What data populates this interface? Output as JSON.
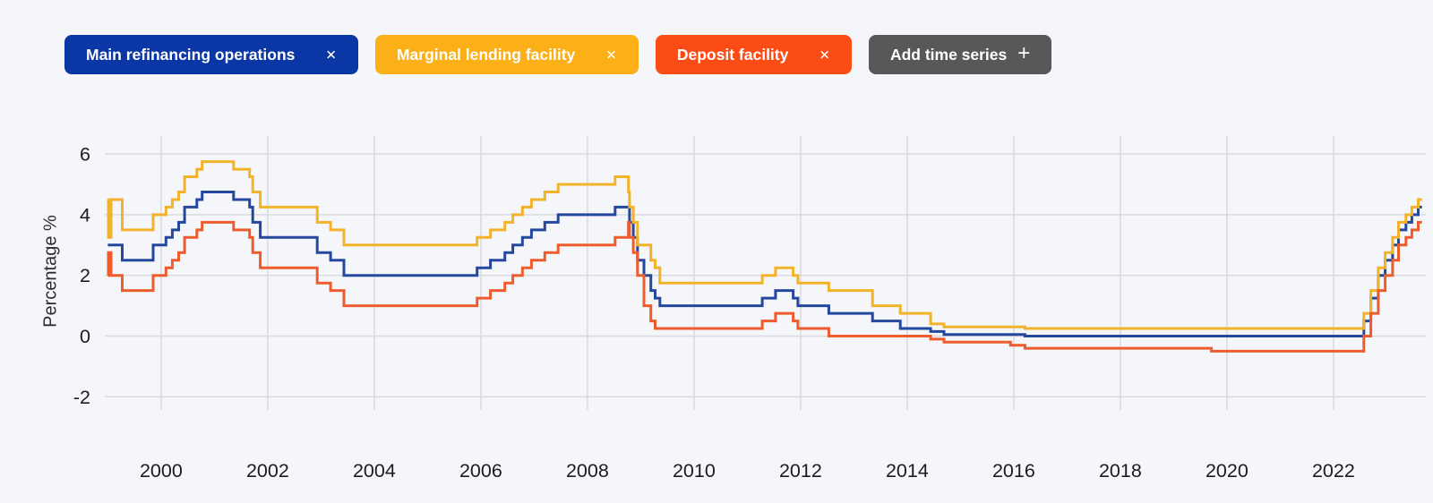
{
  "chips": [
    {
      "label": "Main refinancing operations",
      "close_icon": "✕",
      "color": "#0a36a6"
    },
    {
      "label": "Marginal lending facility",
      "close_icon": "✕",
      "color": "#fbb018"
    },
    {
      "label": "Deposit facility",
      "close_icon": "✕",
      "color": "#fb4c15"
    },
    {
      "label": "Add time series",
      "icon": "+",
      "color": "#58585a"
    }
  ],
  "colors": {
    "background": "#f5f6f9",
    "gridline": "#d7d9de",
    "axis_text": "#1c1c1c"
  },
  "chart_data": {
    "type": "line",
    "subtype": "step-after",
    "title": "",
    "xlabel": "",
    "ylabel": "Percentage %",
    "grid": true,
    "legend_position": "top-chips",
    "x_ticks": [
      2000,
      2002,
      2004,
      2006,
      2008,
      2010,
      2012,
      2014,
      2016,
      2018,
      2020,
      2022
    ],
    "y_ticks": [
      -2,
      0,
      2,
      4,
      6
    ],
    "xlim": [
      1999.0,
      2023.66
    ],
    "ylim": [
      -2.5,
      6.6
    ],
    "x_unit": "year",
    "y_unit": "percent",
    "series": [
      {
        "name": "Main refinancing operations",
        "color": "#24489e",
        "points": [
          [
            1999.0,
            3.0
          ],
          [
            1999.27,
            2.5
          ],
          [
            1999.85,
            3.0
          ],
          [
            2000.09,
            3.25
          ],
          [
            2000.21,
            3.5
          ],
          [
            2000.33,
            3.75
          ],
          [
            2000.44,
            4.25
          ],
          [
            2000.67,
            4.5
          ],
          [
            2000.77,
            4.75
          ],
          [
            2001.36,
            4.5
          ],
          [
            2001.66,
            4.25
          ],
          [
            2001.72,
            3.75
          ],
          [
            2001.86,
            3.25
          ],
          [
            2002.93,
            2.75
          ],
          [
            2003.18,
            2.5
          ],
          [
            2003.43,
            2.0
          ],
          [
            2005.93,
            2.25
          ],
          [
            2006.18,
            2.5
          ],
          [
            2006.45,
            2.75
          ],
          [
            2006.6,
            3.0
          ],
          [
            2006.78,
            3.25
          ],
          [
            2006.95,
            3.5
          ],
          [
            2007.2,
            3.75
          ],
          [
            2007.45,
            4.0
          ],
          [
            2008.52,
            4.25
          ],
          [
            2008.79,
            3.75
          ],
          [
            2008.86,
            3.25
          ],
          [
            2008.94,
            2.5
          ],
          [
            2009.06,
            2.0
          ],
          [
            2009.19,
            1.5
          ],
          [
            2009.27,
            1.25
          ],
          [
            2009.36,
            1.0
          ],
          [
            2011.28,
            1.25
          ],
          [
            2011.53,
            1.5
          ],
          [
            2011.86,
            1.25
          ],
          [
            2011.95,
            1.0
          ],
          [
            2012.53,
            0.75
          ],
          [
            2013.35,
            0.5
          ],
          [
            2013.87,
            0.25
          ],
          [
            2014.44,
            0.15
          ],
          [
            2014.69,
            0.05
          ],
          [
            2016.21,
            0.0
          ],
          [
            2022.57,
            0.5
          ],
          [
            2022.7,
            1.25
          ],
          [
            2022.84,
            2.0
          ],
          [
            2022.97,
            2.5
          ],
          [
            2023.11,
            3.0
          ],
          [
            2023.22,
            3.5
          ],
          [
            2023.36,
            3.75
          ],
          [
            2023.47,
            4.0
          ],
          [
            2023.59,
            4.25
          ]
        ]
      },
      {
        "name": "Marginal lending facility",
        "color": "#f2b32b",
        "points": [
          [
            1999.0,
            4.5
          ],
          [
            1999.01,
            3.25
          ],
          [
            1999.06,
            4.5
          ],
          [
            1999.27,
            3.5
          ],
          [
            1999.85,
            4.0
          ],
          [
            2000.09,
            4.25
          ],
          [
            2000.21,
            4.5
          ],
          [
            2000.33,
            4.75
          ],
          [
            2000.44,
            5.25
          ],
          [
            2000.67,
            5.5
          ],
          [
            2000.77,
            5.75
          ],
          [
            2001.36,
            5.5
          ],
          [
            2001.66,
            5.25
          ],
          [
            2001.72,
            4.75
          ],
          [
            2001.86,
            4.25
          ],
          [
            2002.93,
            3.75
          ],
          [
            2003.18,
            3.5
          ],
          [
            2003.43,
            3.0
          ],
          [
            2005.93,
            3.25
          ],
          [
            2006.18,
            3.5
          ],
          [
            2006.45,
            3.75
          ],
          [
            2006.6,
            4.0
          ],
          [
            2006.78,
            4.25
          ],
          [
            2006.95,
            4.5
          ],
          [
            2007.2,
            4.75
          ],
          [
            2007.45,
            5.0
          ],
          [
            2008.52,
            5.25
          ],
          [
            2008.77,
            4.75
          ],
          [
            2008.79,
            4.25
          ],
          [
            2008.86,
            3.75
          ],
          [
            2008.94,
            3.0
          ],
          [
            2009.19,
            2.5
          ],
          [
            2009.27,
            2.25
          ],
          [
            2009.36,
            1.75
          ],
          [
            2011.28,
            2.0
          ],
          [
            2011.53,
            2.25
          ],
          [
            2011.86,
            2.0
          ],
          [
            2011.95,
            1.75
          ],
          [
            2012.53,
            1.5
          ],
          [
            2013.35,
            1.0
          ],
          [
            2013.87,
            0.75
          ],
          [
            2014.44,
            0.4
          ],
          [
            2014.69,
            0.3
          ],
          [
            2016.21,
            0.25
          ],
          [
            2022.57,
            0.75
          ],
          [
            2022.7,
            1.5
          ],
          [
            2022.84,
            2.25
          ],
          [
            2022.97,
            2.75
          ],
          [
            2023.11,
            3.25
          ],
          [
            2023.22,
            3.75
          ],
          [
            2023.36,
            4.0
          ],
          [
            2023.47,
            4.25
          ],
          [
            2023.59,
            4.5
          ]
        ]
      },
      {
        "name": "Deposit facility",
        "color": "#ee5c2d",
        "points": [
          [
            1999.0,
            2.0
          ],
          [
            1999.01,
            2.75
          ],
          [
            1999.06,
            2.0
          ],
          [
            1999.27,
            1.5
          ],
          [
            1999.85,
            2.0
          ],
          [
            2000.09,
            2.25
          ],
          [
            2000.21,
            2.5
          ],
          [
            2000.33,
            2.75
          ],
          [
            2000.44,
            3.25
          ],
          [
            2000.67,
            3.5
          ],
          [
            2000.77,
            3.75
          ],
          [
            2001.36,
            3.5
          ],
          [
            2001.66,
            3.25
          ],
          [
            2001.72,
            2.75
          ],
          [
            2001.86,
            2.25
          ],
          [
            2002.93,
            1.75
          ],
          [
            2003.18,
            1.5
          ],
          [
            2003.43,
            1.0
          ],
          [
            2005.93,
            1.25
          ],
          [
            2006.18,
            1.5
          ],
          [
            2006.45,
            1.75
          ],
          [
            2006.6,
            2.0
          ],
          [
            2006.78,
            2.25
          ],
          [
            2006.95,
            2.5
          ],
          [
            2007.2,
            2.75
          ],
          [
            2007.45,
            3.0
          ],
          [
            2008.52,
            3.25
          ],
          [
            2008.77,
            3.75
          ],
          [
            2008.79,
            3.25
          ],
          [
            2008.86,
            2.75
          ],
          [
            2008.94,
            2.0
          ],
          [
            2009.06,
            1.0
          ],
          [
            2009.19,
            0.5
          ],
          [
            2009.27,
            0.25
          ],
          [
            2011.28,
            0.5
          ],
          [
            2011.53,
            0.75
          ],
          [
            2011.86,
            0.5
          ],
          [
            2011.95,
            0.25
          ],
          [
            2012.53,
            0.0
          ],
          [
            2014.44,
            -0.1
          ],
          [
            2014.69,
            -0.2
          ],
          [
            2015.94,
            -0.3
          ],
          [
            2016.21,
            -0.4
          ],
          [
            2019.71,
            -0.5
          ],
          [
            2022.57,
            0.0
          ],
          [
            2022.7,
            0.75
          ],
          [
            2022.84,
            1.5
          ],
          [
            2022.97,
            2.0
          ],
          [
            2023.11,
            2.5
          ],
          [
            2023.22,
            3.0
          ],
          [
            2023.36,
            3.25
          ],
          [
            2023.47,
            3.5
          ],
          [
            2023.59,
            3.75
          ]
        ]
      }
    ]
  }
}
